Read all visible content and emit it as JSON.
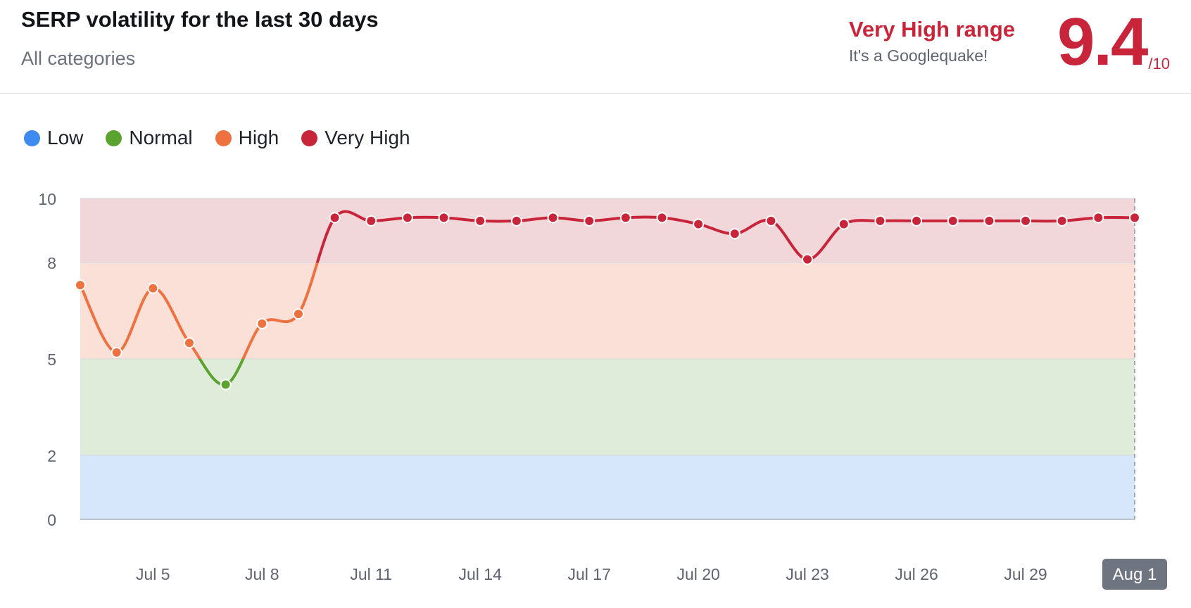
{
  "header": {
    "title": "SERP volatility for the last 30 days",
    "subtitle": "All categories",
    "range_title": "Very High range",
    "range_desc": "It's a Googlequake!",
    "score": "9.4",
    "score_max": "/10"
  },
  "legend": [
    {
      "label": "Low",
      "color": "#3d8af0"
    },
    {
      "label": "Normal",
      "color": "#5aa32e"
    },
    {
      "label": "High",
      "color": "#ee7140"
    },
    {
      "label": "Very High",
      "color": "#c8243a"
    }
  ],
  "chart_data": {
    "type": "line",
    "title": "SERP volatility for the last 30 days",
    "xlabel": "",
    "ylabel": "",
    "ylim": [
      0,
      10
    ],
    "y_ticks": [
      0,
      2,
      5,
      8,
      10
    ],
    "x_tick_labels": [
      "Jul 5",
      "Jul 8",
      "Jul 11",
      "Jul 14",
      "Jul 17",
      "Jul 20",
      "Jul 23",
      "Jul 26",
      "Jul 29",
      "Aug 1"
    ],
    "highlighted_x": "Aug 1",
    "bands": [
      {
        "name": "Low",
        "from": 0,
        "to": 2,
        "color": "#d6e6fb",
        "line_color": "#3d8af0"
      },
      {
        "name": "Normal",
        "from": 2,
        "to": 5,
        "color": "#dfecd9",
        "line_color": "#5aa32e"
      },
      {
        "name": "High",
        "from": 5,
        "to": 8,
        "color": "#fae0d7",
        "line_color": "#ee7140"
      },
      {
        "name": "Very High",
        "from": 8,
        "to": 10,
        "color": "#f1d6da",
        "line_color": "#c8243a"
      }
    ],
    "x": [
      "Jul 3",
      "Jul 4",
      "Jul 5",
      "Jul 6",
      "Jul 7",
      "Jul 8",
      "Jul 9",
      "Jul 10",
      "Jul 11",
      "Jul 12",
      "Jul 13",
      "Jul 14",
      "Jul 15",
      "Jul 16",
      "Jul 17",
      "Jul 18",
      "Jul 19",
      "Jul 20",
      "Jul 21",
      "Jul 22",
      "Jul 23",
      "Jul 24",
      "Jul 25",
      "Jul 26",
      "Jul 27",
      "Jul 28",
      "Jul 29",
      "Jul 30",
      "Jul 31",
      "Aug 1"
    ],
    "series": [
      {
        "values": [
          7.3,
          5.2,
          7.2,
          5.5,
          4.2,
          6.1,
          6.4,
          9.4,
          9.3,
          9.4,
          9.4,
          9.3,
          9.3,
          9.4,
          9.3,
          9.4,
          9.4,
          9.2,
          8.9,
          9.3,
          8.1,
          9.2,
          9.3,
          9.3,
          9.3,
          9.3,
          9.3,
          9.3,
          9.4,
          9.4
        ]
      }
    ]
  }
}
